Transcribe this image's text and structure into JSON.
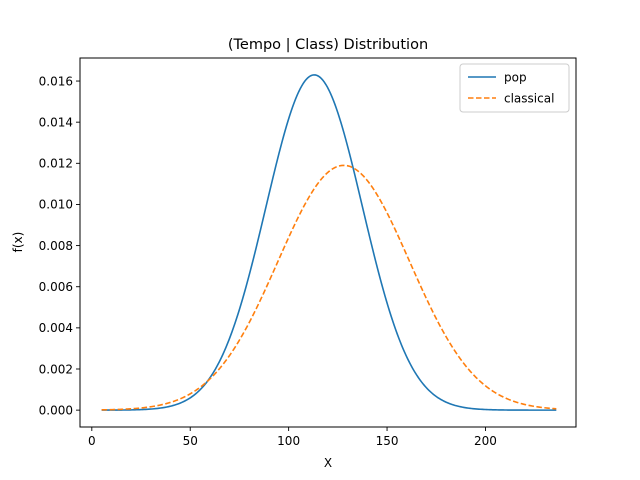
{
  "chart_data": {
    "type": "line",
    "title": "(Tempo | Class) Distribution",
    "xlabel": "X",
    "ylabel": "f(x)",
    "xlim": [
      -6,
      246
    ],
    "ylim": [
      -0.00082,
      0.01712
    ],
    "xticks": [
      0,
      50,
      100,
      150,
      200
    ],
    "xtick_labels": [
      "0",
      "50",
      "100",
      "150",
      "200"
    ],
    "yticks": [
      0.0,
      0.002,
      0.004,
      0.006,
      0.008,
      0.01,
      0.012,
      0.014,
      0.016
    ],
    "ytick_labels": [
      "0.000",
      "0.002",
      "0.004",
      "0.006",
      "0.008",
      "0.010",
      "0.012",
      "0.014",
      "0.016"
    ],
    "grid": false,
    "legend_position": "top-right",
    "x_domain": [
      5,
      236
    ],
    "series": [
      {
        "name": "pop",
        "color": "#1f77b4",
        "dash": "solid",
        "distribution": "normal",
        "mean": 113,
        "std": 24.5,
        "peak": 0.0163
      },
      {
        "name": "classical",
        "color": "#ff7f0e",
        "dash": "dashed",
        "distribution": "normal",
        "mean": 128,
        "std": 33.5,
        "peak": 0.0119
      }
    ]
  }
}
